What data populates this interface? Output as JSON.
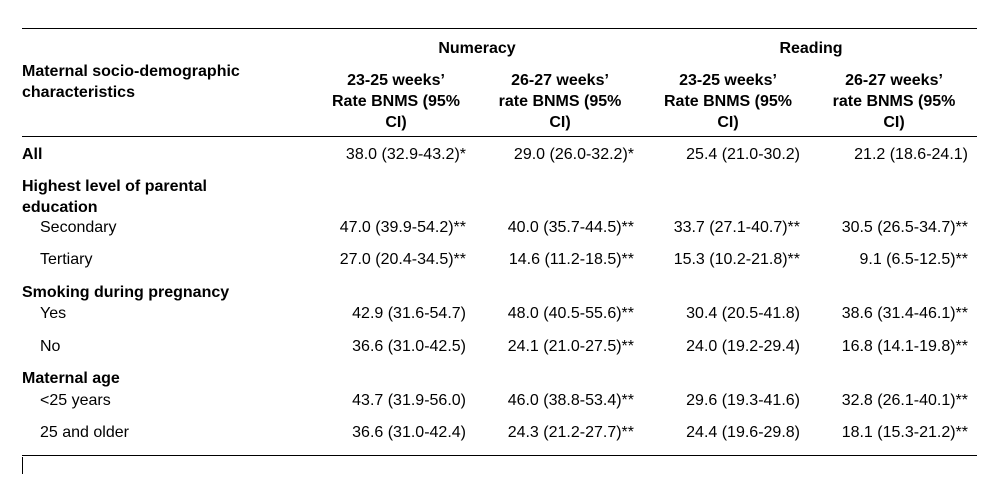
{
  "header": {
    "row_label_line1": "Maternal socio-demographic",
    "row_label_line2": "characteristics",
    "group_numeracy": "Numeracy",
    "group_reading": "Reading",
    "cols": [
      {
        "l1": "23-25 weeks’",
        "l2": "Rate BNMS (95%",
        "l3": "CI)"
      },
      {
        "l1": "26-27 weeks’",
        "l2": "rate BNMS (95%",
        "l3": "CI)"
      },
      {
        "l1": "23-25 weeks’",
        "l2": "Rate BNMS (95%",
        "l3": "CI)"
      },
      {
        "l1": "26-27 weeks’",
        "l2": "rate BNMS (95%",
        "l3": "CI)"
      }
    ]
  },
  "rows": {
    "all": {
      "label": "All",
      "v": [
        "38.0 (32.9-43.2)*",
        "29.0 (26.0-32.2)*",
        "25.4 (21.0-30.2)",
        "21.2 (18.6-24.1)"
      ]
    },
    "edu_heading_l1": "Highest level of parental",
    "edu_heading_l2": "education",
    "secondary": {
      "label": "Secondary",
      "v": [
        "47.0 (39.9-54.2)**",
        "40.0 (35.7-44.5)**",
        "33.7 (27.1-40.7)**",
        "30.5 (26.5-34.7)**"
      ]
    },
    "tertiary": {
      "label": "Tertiary",
      "v": [
        "27.0 (20.4-34.5)**",
        "14.6 (11.2-18.5)**",
        "15.3 (10.2-21.8)**",
        "9.1 (6.5-12.5)**"
      ]
    },
    "smoking_heading": "Smoking during pregnancy",
    "yes": {
      "label": "Yes",
      "v": [
        "42.9 (31.6-54.7)",
        "48.0 (40.5-55.6)**",
        "30.4 (20.5-41.8)",
        "38.6 (31.4-46.1)**"
      ]
    },
    "no": {
      "label": "No",
      "v": [
        "36.6 (31.0-42.5)",
        "24.1 (21.0-27.5)**",
        "24.0 (19.2-29.4)",
        "16.8 (14.1-19.8)**"
      ]
    },
    "age_heading": "Maternal age",
    "under25": {
      "label": "<25 years",
      "v": [
        "43.7 (31.9-56.0)",
        "46.0 (38.8-53.4)**",
        "29.6 (19.3-41.6)",
        "32.8 (26.1-40.1)**"
      ]
    },
    "over25": {
      "label": "25 and older",
      "v": [
        "36.6 (31.0-42.4)",
        "24.3 (21.2-27.7)**",
        "24.4 (19.6-29.8)",
        "18.1 (15.3-21.2)**"
      ]
    }
  }
}
